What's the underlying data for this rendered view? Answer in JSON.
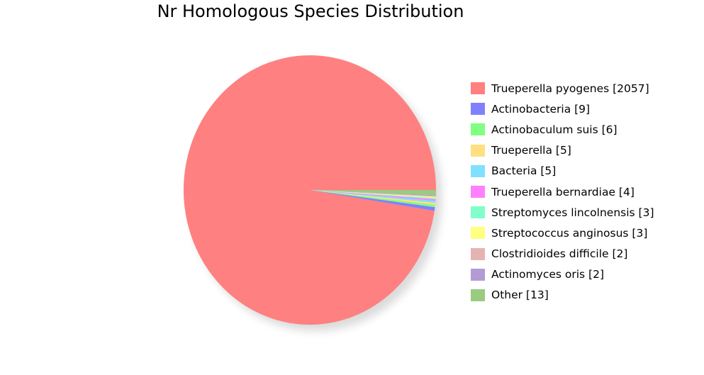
{
  "chart_data": {
    "type": "pie",
    "title": "Nr Homologous Species Distribution",
    "legend_position": "right",
    "slices": [
      {
        "label": "Trueperella pyogenes [2057]",
        "name": "Trueperella pyogenes",
        "value": 2057,
        "color": "#ff8080"
      },
      {
        "label": "Actinobacteria [9]",
        "name": "Actinobacteria",
        "value": 9,
        "color": "#8080ff"
      },
      {
        "label": "Actinobaculum suis [6]",
        "name": "Actinobaculum suis",
        "value": 6,
        "color": "#80ff80"
      },
      {
        "label": "Trueperella [5]",
        "name": "Trueperella",
        "value": 5,
        "color": "#ffe080"
      },
      {
        "label": "Bacteria [5]",
        "name": "Bacteria",
        "value": 5,
        "color": "#80e0ff"
      },
      {
        "label": "Trueperella bernardiae [4]",
        "name": "Trueperella bernardiae",
        "value": 4,
        "color": "#ff80ff"
      },
      {
        "label": "Streptomyces lincolnensis [3]",
        "name": "Streptomyces lincolnensis",
        "value": 3,
        "color": "#80ffcc"
      },
      {
        "label": "Streptococcus anginosus [3]",
        "name": "Streptococcus anginosus",
        "value": 3,
        "color": "#ffff80"
      },
      {
        "label": "Clostridioides difficile [2]",
        "name": "Clostridioides difficile",
        "value": 2,
        "color": "#e6b3b3"
      },
      {
        "label": "Actinomyces oris [2]",
        "name": "Actinomyces oris",
        "value": 2,
        "color": "#b39cd6"
      },
      {
        "label": "Other [13]",
        "name": "Other",
        "value": 13,
        "color": "#99cc80"
      }
    ]
  }
}
